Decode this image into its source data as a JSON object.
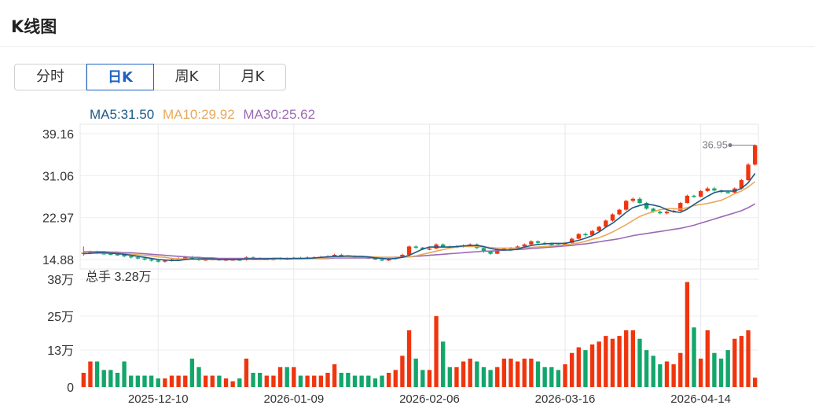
{
  "header": {
    "title": "K线图"
  },
  "tabs": [
    {
      "label": "分时",
      "active": false
    },
    {
      "label": "日K",
      "active": true
    },
    {
      "label": "周K",
      "active": false
    },
    {
      "label": "月K",
      "active": false
    }
  ],
  "ma": {
    "ma5": "MA5:31.50",
    "ma10": "MA10:29.92",
    "ma30": "MA30:25.62"
  },
  "volume_summary": "总手 3.28万",
  "last_price_label": "36.95",
  "colors": {
    "up": "#f0350e",
    "down": "#13a66b",
    "ma5": "#1c5a85",
    "ma10": "#e8a95b",
    "ma30": "#9b6ab5",
    "active_tab": "#1e63c4"
  },
  "chart_data": {
    "type": "candlestick",
    "price_axis_ticks": [
      "39.16",
      "31.06",
      "22.97",
      "14.88"
    ],
    "volume_axis_ticks": [
      "38万",
      "25万",
      "13万",
      "0"
    ],
    "x_tick_labels": [
      "2025-12-10",
      "2026-01-09",
      "2026-02-06",
      "2026-03-16",
      "2026-04-14"
    ],
    "price_range": [
      14.88,
      39.16
    ],
    "volume_range": [
      0,
      38
    ],
    "candles": [
      [
        16.0,
        16.2,
        17.4,
        15.6,
        5
      ],
      [
        16.2,
        16.3,
        16.6,
        15.9,
        9
      ],
      [
        16.3,
        16.2,
        16.6,
        15.9,
        9
      ],
      [
        16.1,
        16.0,
        16.3,
        15.8,
        6
      ],
      [
        16.0,
        15.9,
        16.2,
        15.7,
        6
      ],
      [
        15.9,
        15.8,
        16.1,
        15.6,
        5
      ],
      [
        15.8,
        15.5,
        15.9,
        15.3,
        9
      ],
      [
        15.5,
        15.3,
        15.7,
        15.1,
        4
      ],
      [
        15.3,
        15.1,
        15.5,
        14.9,
        4
      ],
      [
        15.1,
        14.9,
        15.3,
        14.7,
        4
      ],
      [
        14.9,
        14.7,
        15.1,
        14.5,
        4
      ],
      [
        14.7,
        14.5,
        14.9,
        14.3,
        3
      ],
      [
        14.5,
        14.7,
        14.9,
        14.3,
        3
      ],
      [
        14.7,
        14.9,
        15.1,
        14.5,
        4
      ],
      [
        14.9,
        15.1,
        15.3,
        14.7,
        4
      ],
      [
        15.1,
        15.4,
        15.6,
        14.9,
        4
      ],
      [
        15.4,
        15.0,
        15.6,
        14.8,
        10
      ],
      [
        15.0,
        14.8,
        15.2,
        14.6,
        7
      ],
      [
        14.8,
        14.9,
        15.1,
        14.6,
        4
      ],
      [
        14.9,
        15.0,
        15.2,
        14.7,
        4
      ],
      [
        15.0,
        14.8,
        15.2,
        14.6,
        4
      ],
      [
        14.8,
        14.9,
        15.0,
        14.6,
        3
      ],
      [
        14.9,
        14.9,
        15.1,
        14.7,
        2
      ],
      [
        14.9,
        14.8,
        15.0,
        14.6,
        3
      ],
      [
        14.8,
        15.3,
        15.5,
        14.7,
        10
      ],
      [
        15.3,
        15.1,
        15.5,
        14.9,
        5
      ],
      [
        15.1,
        15.0,
        15.3,
        14.8,
        5
      ],
      [
        15.0,
        15.0,
        15.2,
        14.8,
        4
      ],
      [
        15.0,
        15.0,
        15.2,
        14.8,
        4
      ],
      [
        15.0,
        15.1,
        15.3,
        14.8,
        7
      ],
      [
        15.1,
        15.0,
        15.3,
        14.8,
        7
      ],
      [
        15.0,
        15.2,
        15.4,
        14.9,
        7
      ],
      [
        15.2,
        15.1,
        15.4,
        14.9,
        4
      ],
      [
        15.1,
        15.3,
        15.5,
        15.0,
        4
      ],
      [
        15.3,
        15.3,
        15.5,
        15.0,
        4
      ],
      [
        15.3,
        15.4,
        15.6,
        15.1,
        4
      ],
      [
        15.4,
        15.5,
        15.7,
        15.2,
        5
      ],
      [
        15.5,
        15.8,
        16.0,
        15.4,
        8
      ],
      [
        15.8,
        15.6,
        16.0,
        15.4,
        5
      ],
      [
        15.6,
        15.5,
        15.7,
        15.3,
        5
      ],
      [
        15.5,
        15.4,
        15.7,
        15.3,
        4
      ],
      [
        15.4,
        15.3,
        15.6,
        15.1,
        4
      ],
      [
        15.3,
        15.1,
        15.5,
        15.0,
        4
      ],
      [
        15.1,
        14.9,
        15.3,
        14.8,
        3
      ],
      [
        14.9,
        14.7,
        15.1,
        14.6,
        4
      ],
      [
        14.7,
        15.0,
        15.2,
        14.6,
        5
      ],
      [
        15.0,
        15.3,
        15.5,
        14.9,
        6
      ],
      [
        15.3,
        15.8,
        16.0,
        15.2,
        11
      ],
      [
        15.8,
        17.4,
        17.6,
        15.7,
        20
      ],
      [
        17.4,
        17.2,
        17.6,
        16.9,
        10
      ],
      [
        17.2,
        16.9,
        17.3,
        16.7,
        6
      ],
      [
        16.9,
        17.0,
        17.2,
        16.7,
        6
      ],
      [
        17.0,
        17.8,
        18.0,
        16.9,
        25
      ],
      [
        17.8,
        17.4,
        18.0,
        17.2,
        16
      ],
      [
        17.4,
        17.3,
        17.6,
        17.1,
        7
      ],
      [
        17.3,
        17.4,
        17.6,
        17.1,
        7
      ],
      [
        17.4,
        17.6,
        17.8,
        17.2,
        9
      ],
      [
        17.6,
        17.8,
        18.0,
        17.4,
        10
      ],
      [
        17.8,
        17.1,
        18.0,
        16.9,
        9
      ],
      [
        17.1,
        16.4,
        17.3,
        16.2,
        7
      ],
      [
        16.4,
        16.0,
        16.6,
        15.8,
        6
      ],
      [
        16.0,
        16.8,
        17.0,
        15.9,
        7
      ],
      [
        16.8,
        17.0,
        17.2,
        16.6,
        10
      ],
      [
        17.0,
        17.1,
        17.3,
        16.8,
        10
      ],
      [
        17.1,
        17.4,
        17.6,
        16.9,
        9
      ],
      [
        17.4,
        17.8,
        18.0,
        17.2,
        10
      ],
      [
        17.8,
        18.4,
        18.6,
        17.6,
        10
      ],
      [
        18.4,
        18.1,
        18.6,
        17.9,
        9
      ],
      [
        18.1,
        17.9,
        18.3,
        17.7,
        7
      ],
      [
        17.9,
        17.8,
        18.1,
        17.6,
        7
      ],
      [
        17.8,
        17.6,
        18.0,
        17.4,
        6
      ],
      [
        17.6,
        18.1,
        18.3,
        17.5,
        8
      ],
      [
        18.1,
        18.9,
        19.1,
        18.0,
        12
      ],
      [
        18.9,
        19.8,
        20.0,
        18.8,
        14
      ],
      [
        19.8,
        19.6,
        20.1,
        19.3,
        13
      ],
      [
        19.6,
        20.4,
        20.6,
        19.4,
        15
      ],
      [
        20.4,
        21.2,
        21.4,
        20.2,
        16
      ],
      [
        21.2,
        22.4,
        22.6,
        21.0,
        18
      ],
      [
        22.4,
        23.6,
        23.8,
        22.2,
        17
      ],
      [
        23.6,
        24.5,
        24.7,
        23.4,
        18
      ],
      [
        24.5,
        26.2,
        26.4,
        24.3,
        20
      ],
      [
        26.2,
        26.6,
        26.9,
        25.9,
        20
      ],
      [
        26.6,
        25.8,
        26.9,
        25.6,
        17
      ],
      [
        25.8,
        24.7,
        26.0,
        24.5,
        13
      ],
      [
        24.7,
        24.1,
        24.9,
        23.9,
        11
      ],
      [
        24.1,
        23.8,
        24.3,
        23.6,
        8
      ],
      [
        23.8,
        24.1,
        24.3,
        23.6,
        9
      ],
      [
        24.1,
        24.3,
        24.5,
        23.9,
        8
      ],
      [
        24.3,
        25.8,
        26.0,
        24.2,
        12
      ],
      [
        25.8,
        27.2,
        27.4,
        25.7,
        37
      ],
      [
        27.2,
        27.0,
        27.4,
        26.8,
        21
      ],
      [
        27.0,
        28.1,
        28.3,
        26.9,
        10
      ],
      [
        28.1,
        28.6,
        28.9,
        27.9,
        20
      ],
      [
        28.6,
        28.2,
        28.9,
        28.0,
        12
      ],
      [
        28.2,
        27.9,
        28.4,
        27.7,
        10
      ],
      [
        27.9,
        27.8,
        28.1,
        27.6,
        13
      ],
      [
        27.8,
        28.6,
        28.8,
        27.7,
        17
      ],
      [
        28.6,
        30.2,
        30.4,
        28.4,
        18
      ],
      [
        30.2,
        33.2,
        33.5,
        30.0,
        20
      ],
      [
        33.2,
        36.95,
        37.1,
        33.0,
        3.28
      ]
    ],
    "ma5": [
      16.0,
      16.1,
      16.2,
      16.2,
      16.1,
      16.0,
      15.9,
      15.7,
      15.5,
      15.3,
      15.1,
      14.9,
      14.8,
      14.7,
      14.7,
      14.9,
      15.0,
      15.0,
      15.0,
      15.0,
      14.9,
      14.9,
      14.9,
      14.9,
      15.0,
      15.0,
      15.0,
      15.0,
      15.1,
      15.1,
      15.0,
      15.1,
      15.1,
      15.1,
      15.2,
      15.3,
      15.4,
      15.5,
      15.5,
      15.6,
      15.5,
      15.5,
      15.4,
      15.2,
      15.1,
      15.0,
      15.1,
      15.3,
      15.7,
      16.3,
      16.9,
      17.3,
      17.3,
      17.3,
      17.3,
      17.4,
      17.5,
      17.6,
      17.6,
      17.4,
      17.0,
      16.8,
      16.7,
      16.7,
      16.9,
      17.3,
      17.6,
      17.8,
      17.9,
      18.0,
      18.0,
      18.0,
      18.3,
      18.6,
      19.0,
      19.5,
      20.2,
      21.1,
      21.9,
      22.9,
      24.0,
      24.9,
      25.3,
      25.6,
      25.4,
      25.1,
      24.5,
      24.1,
      24.0,
      24.6,
      25.5,
      26.3,
      27.1,
      27.8,
      28.1,
      28.1,
      28.1,
      28.6,
      29.7,
      31.5
    ],
    "ma10": [
      16.0,
      16.1,
      16.1,
      16.1,
      16.1,
      16.0,
      16.0,
      15.9,
      15.8,
      15.7,
      15.6,
      15.4,
      15.3,
      15.1,
      15.0,
      15.0,
      15.0,
      14.9,
      14.9,
      14.9,
      14.9,
      14.9,
      14.9,
      14.9,
      15.0,
      14.9,
      14.9,
      14.9,
      15.0,
      15.0,
      15.0,
      15.0,
      15.0,
      15.1,
      15.1,
      15.2,
      15.2,
      15.3,
      15.3,
      15.3,
      15.4,
      15.4,
      15.4,
      15.4,
      15.3,
      15.3,
      15.3,
      15.3,
      15.4,
      15.6,
      15.9,
      16.2,
      16.5,
      16.8,
      17.1,
      17.3,
      17.4,
      17.4,
      17.4,
      17.3,
      17.2,
      17.1,
      17.1,
      17.1,
      17.1,
      17.2,
      17.2,
      17.3,
      17.4,
      17.5,
      17.6,
      17.7,
      17.9,
      18.1,
      18.4,
      18.8,
      19.1,
      19.6,
      20.2,
      20.9,
      21.6,
      22.4,
      23.2,
      23.7,
      24.1,
      24.5,
      24.7,
      24.7,
      24.6,
      24.9,
      25.3,
      25.5,
      25.7,
      26.0,
      26.3,
      26.9,
      27.6,
      28.1,
      28.9,
      29.92
    ],
    "ma30": [
      16.4,
      16.4,
      16.4,
      16.4,
      16.3,
      16.3,
      16.2,
      16.2,
      16.1,
      16.0,
      15.9,
      15.8,
      15.7,
      15.6,
      15.5,
      15.4,
      15.3,
      15.3,
      15.2,
      15.2,
      15.1,
      15.1,
      15.1,
      15.1,
      15.1,
      15.1,
      15.1,
      15.1,
      15.1,
      15.1,
      15.1,
      15.1,
      15.1,
      15.1,
      15.1,
      15.1,
      15.1,
      15.2,
      15.2,
      15.2,
      15.2,
      15.2,
      15.2,
      15.2,
      15.3,
      15.3,
      15.3,
      15.4,
      15.4,
      15.5,
      15.6,
      15.7,
      15.8,
      15.9,
      16.0,
      16.1,
      16.2,
      16.3,
      16.4,
      16.5,
      16.5,
      16.6,
      16.7,
      16.8,
      16.8,
      16.9,
      17.0,
      17.1,
      17.2,
      17.3,
      17.4,
      17.5,
      17.6,
      17.8,
      17.9,
      18.1,
      18.3,
      18.5,
      18.7,
      18.9,
      19.2,
      19.5,
      19.7,
      19.9,
      20.1,
      20.3,
      20.5,
      20.7,
      20.9,
      21.2,
      21.5,
      21.9,
      22.3,
      22.7,
      23.1,
      23.5,
      23.9,
      24.3,
      24.9,
      25.62
    ]
  }
}
